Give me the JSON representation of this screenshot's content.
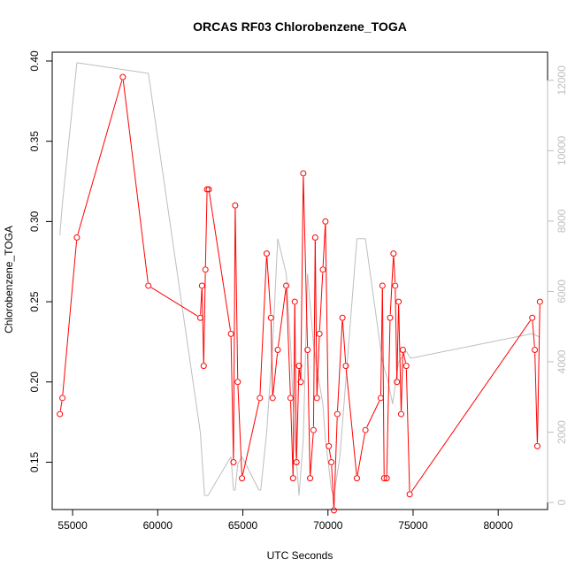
{
  "chart_data": {
    "type": "line",
    "title": "ORCAS RF03 Chlorobenzene_TOGA",
    "xlabel": "UTC Seconds",
    "ylabel": "Chlorobenzene_TOGA",
    "xlim": [
      53800,
      82900
    ],
    "ylim": [
      0.1205,
      0.4055
    ],
    "y2lim": [
      -200,
      12800
    ],
    "x_ticks": [
      55000,
      60000,
      65000,
      70000,
      75000,
      80000
    ],
    "y_ticks": [
      0.15,
      0.2,
      0.25,
      0.3,
      0.35,
      0.4
    ],
    "y2_ticks": [
      0,
      2000,
      4000,
      6000,
      8000,
      10000,
      12000
    ],
    "grid": false,
    "series": [
      {
        "color": "#ff0000",
        "axis": "left",
        "markers": "open-circle",
        "x": [
          54250,
          54400,
          55250,
          57950,
          59450,
          62500,
          62600,
          62700,
          62800,
          62900,
          63000,
          64300,
          64450,
          64550,
          64700,
          64950,
          66000,
          66400,
          66650,
          66750,
          67050,
          67550,
          67800,
          67950,
          68050,
          68150,
          68300,
          68400,
          68550,
          68800,
          68950,
          69150,
          69250,
          69350,
          69500,
          69700,
          69850,
          70050,
          70200,
          70350,
          70550,
          70850,
          71050,
          71700,
          72200,
          73100,
          73200,
          73300,
          73450,
          73650,
          73850,
          73950,
          74050,
          74150,
          74300,
          74400,
          74600,
          74800,
          82000,
          82150,
          82300,
          82450
        ],
        "y": [
          0.18,
          0.19,
          0.29,
          0.39,
          0.26,
          0.24,
          0.26,
          0.21,
          0.27,
          0.32,
          0.32,
          0.23,
          0.15,
          0.31,
          0.2,
          0.14,
          0.19,
          0.28,
          0.24,
          0.19,
          0.22,
          0.26,
          0.19,
          0.14,
          0.25,
          0.15,
          0.21,
          0.2,
          0.33,
          0.22,
          0.14,
          0.17,
          0.29,
          0.19,
          0.23,
          0.27,
          0.3,
          0.16,
          0.15,
          0.12,
          0.18,
          0.24,
          0.21,
          0.14,
          0.17,
          0.19,
          0.26,
          0.14,
          0.14,
          0.24,
          0.28,
          0.26,
          0.2,
          0.25,
          0.18,
          0.22,
          0.21,
          0.13,
          0.24,
          0.22,
          0.16,
          0.25
        ]
      },
      {
        "color": "#bebebe",
        "axis": "right",
        "markers": "none",
        "x": [
          54250,
          54400,
          55250,
          59450,
          62500,
          62750,
          62950,
          64300,
          64450,
          64550,
          64700,
          64950,
          65950,
          66050,
          66400,
          66750,
          67050,
          67550,
          67800,
          68050,
          68300,
          68550,
          68800,
          69150,
          69350,
          69700,
          69850,
          70050,
          70200,
          70350,
          70700,
          71700,
          72200,
          73200,
          73500,
          73800,
          74150,
          74600,
          74850,
          82000,
          82450
        ],
        "y": [
          7600,
          8500,
          12500,
          12200,
          2000,
          200,
          200,
          1300,
          350,
          350,
          1100,
          1300,
          350,
          350,
          2000,
          4500,
          7500,
          6500,
          4500,
          1800,
          200,
          1800,
          6500,
          4500,
          3800,
          2800,
          1800,
          1000,
          350,
          200,
          1300,
          7500,
          7500,
          4000,
          3500,
          2800,
          4000,
          4300,
          4100,
          4800,
          4700
        ]
      }
    ]
  }
}
